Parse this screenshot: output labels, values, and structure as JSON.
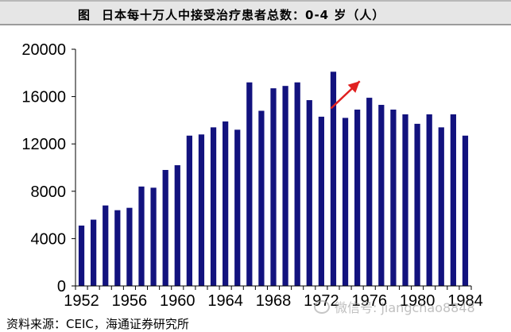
{
  "title": {
    "prefix": "图",
    "text": "日本每十万人中接受治疗患者总数：0-4 岁（人）"
  },
  "source": "资料来源：CEIC，海通证券研究所",
  "watermark": "微信号: jiangchao8848",
  "colors": {
    "bar": "#12127e",
    "arrow": "#e02020",
    "axis": "#000000",
    "title_bg": "#e6e6e6"
  },
  "chart_data": {
    "type": "bar",
    "x": [
      1952,
      1953,
      1954,
      1955,
      1956,
      1957,
      1958,
      1959,
      1960,
      1961,
      1962,
      1963,
      1964,
      1965,
      1966,
      1967,
      1968,
      1969,
      1970,
      1971,
      1972,
      1973,
      1974,
      1975,
      1976,
      1977,
      1978,
      1979,
      1980,
      1981,
      1982,
      1983,
      1984
    ],
    "values": [
      5100,
      5600,
      6800,
      6400,
      6600,
      8400,
      8300,
      9800,
      10200,
      12700,
      12800,
      13400,
      13900,
      13200,
      17200,
      14800,
      16700,
      16900,
      17200,
      15700,
      14300,
      18100,
      14200,
      14900,
      15900,
      15300,
      14900,
      14500,
      13700,
      14500,
      13400,
      14500,
      12700
    ],
    "xticks": [
      "1952",
      "1956",
      "1960",
      "1964",
      "1968",
      "1972",
      "1976",
      "1980",
      "1984"
    ],
    "yticks": [
      "0",
      "4000",
      "8000",
      "12000",
      "16000",
      "20000"
    ],
    "ylim": [
      0,
      20000
    ],
    "annotation": {
      "type": "arrow",
      "from": [
        1972.8,
        15000
      ],
      "to": [
        1975.2,
        17300
      ]
    },
    "grid": false,
    "xlabel": "",
    "ylabel": ""
  }
}
